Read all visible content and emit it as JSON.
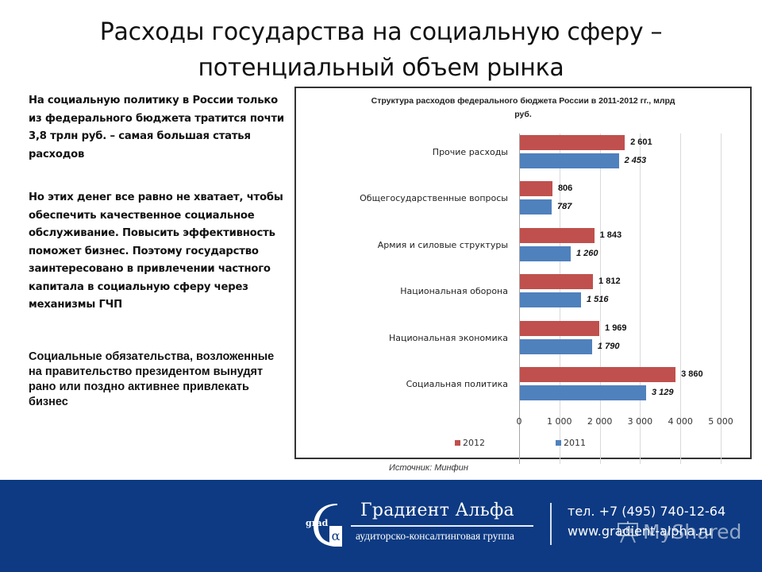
{
  "slide": {
    "title_line1": "Расходы государства на социальную сферу –",
    "title_line2": "потенциальный объем рынка",
    "paragraph1": "На социальную политику в России только из федерального бюджета тратится почти 3,8 трлн руб. – самая большая статья расходов",
    "paragraph2": "Но этих денег все равно не хватает, чтобы обеспечить качественное социальное обслуживание. Повысить эффективность поможет бизнес. Поэтому государство заинтересовано в привлечении частного капитала в социальную сферу через механизмы ГЧП",
    "paragraph3": "Социальные обязательства, возложенные на правительство президентом вынудят рано или поздно активнее привлекать бизнес",
    "source": "Источник: Минфин"
  },
  "chart_data": {
    "type": "bar",
    "orientation": "horizontal",
    "title": "Структура расходов федерального бюджета России в 2011-2012 гг., млрд руб.",
    "title_line1": "Структура расходов федерального бюджета России в 2011-2012 гг., млрд",
    "title_line2": "руб.",
    "categories": [
      "Прочие расходы",
      "Общегосударственные вопросы",
      "Армия и силовые структуры",
      "Национальная оборона",
      "Национальная экономика",
      "Социальная политика"
    ],
    "series": [
      {
        "name": "2012",
        "color": "#c0504d",
        "values": [
          2601,
          806,
          1843,
          1812,
          1969,
          3860
        ],
        "labels": [
          "2 601",
          "806",
          "1 843",
          "1 812",
          "1 969",
          "3 860"
        ]
      },
      {
        "name": "2011",
        "color": "#4f81bd",
        "values": [
          2453,
          787,
          1260,
          1516,
          1790,
          3129
        ],
        "labels": [
          "2 453",
          "787",
          "1 260",
          "1 516",
          "1 790",
          "3 129"
        ]
      }
    ],
    "xlabel": "",
    "ylabel": "",
    "xlim": [
      0,
      5000
    ],
    "x_ticks": [
      "0",
      "1 000",
      "2 000",
      "3 000",
      "4 000",
      "5 000"
    ],
    "grid": true,
    "legend_position": "bottom",
    "legend": [
      "2012",
      "2011"
    ]
  },
  "footer": {
    "logo_text": "grad",
    "logo_symbol": "α",
    "company": "Градиент Альфа",
    "tagline": "аудиторско-консалтинговая группа",
    "phone": "тел. +7 (495) 740-12-64",
    "website": "www.gradient-alpha.ru",
    "watermark": "MyShared",
    "background_color": "#0d3a82"
  }
}
